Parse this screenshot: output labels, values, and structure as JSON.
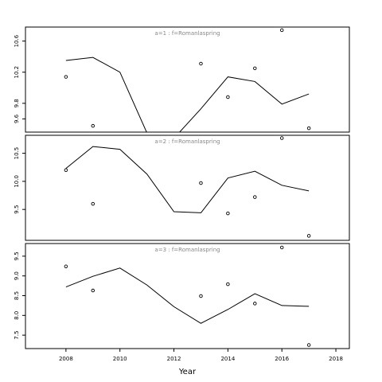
{
  "chart_data": {
    "type": "line",
    "xlabel": "Year",
    "xlim": [
      2006.5,
      2018.5
    ],
    "xticks": [
      2008,
      2010,
      2012,
      2014,
      2016,
      2018
    ],
    "panels": [
      {
        "label": "a=1  :  f=Romanlaspring",
        "ylim": [
          9.43,
          10.78
        ],
        "yticks": [
          9.6,
          9.8,
          10.2,
          10.6
        ],
        "fitted": {
          "x": [
            2008,
            2009,
            2010,
            2011,
            2012,
            2013,
            2014,
            2015,
            2016,
            2017
          ],
          "y": [
            10.35,
            10.39,
            10.2,
            9.42,
            9.35,
            9.73,
            10.14,
            10.08,
            9.79,
            9.92
          ]
        },
        "observed": {
          "x": [
            2008,
            2009,
            2013,
            2014,
            2015,
            2016,
            2017
          ],
          "y": [
            10.14,
            9.51,
            10.31,
            9.88,
            10.25,
            10.74,
            9.48
          ]
        }
      },
      {
        "label": "a=2  :  f=Romanlaspring",
        "ylim": [
          8.95,
          10.82
        ],
        "yticks": [
          9.5,
          10.0,
          10.5
        ],
        "fitted": {
          "x": [
            2008,
            2009,
            2010,
            2011,
            2012,
            2013,
            2014,
            2015,
            2016,
            2017
          ],
          "y": [
            10.23,
            10.62,
            10.57,
            10.13,
            9.46,
            9.44,
            10.06,
            10.18,
            9.93,
            9.83
          ]
        },
        "observed": {
          "x": [
            2008,
            2009,
            2013,
            2014,
            2015,
            2016,
            2017
          ],
          "y": [
            10.2,
            9.6,
            9.97,
            9.43,
            9.72,
            10.77,
            9.03
          ]
        }
      },
      {
        "label": "a=3  :  f=Romanlaspring",
        "ylim": [
          7.16,
          9.82
        ],
        "yticks": [
          7.5,
          8.0,
          8.5,
          9.0,
          9.5
        ],
        "fitted": {
          "x": [
            2008,
            2009,
            2010,
            2011,
            2012,
            2013,
            2014,
            2015,
            2016,
            2017
          ],
          "y": [
            8.72,
            8.99,
            9.2,
            8.77,
            8.22,
            7.8,
            8.15,
            8.55,
            8.25,
            8.23
          ]
        },
        "observed": {
          "x": [
            2008,
            2009,
            2013,
            2014,
            2015,
            2016,
            2017
          ],
          "y": [
            9.24,
            8.63,
            8.49,
            8.79,
            8.3,
            9.72,
            7.25
          ]
        }
      }
    ]
  }
}
